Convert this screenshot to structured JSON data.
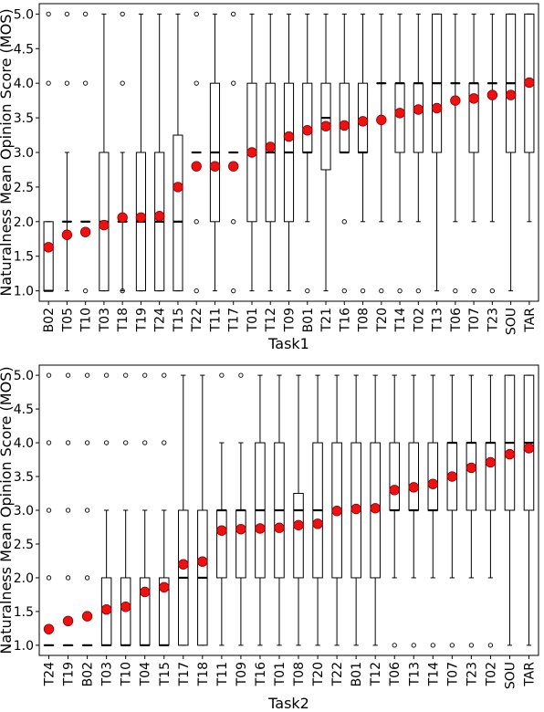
{
  "chart_data": [
    {
      "type": "box",
      "xlabel": "Task1",
      "ylabel": "Naturalness Mean Opinion Score (MOS)",
      "ylim": [
        0.85,
        5.15
      ],
      "yticks": [
        1.0,
        1.5,
        2.0,
        2.5,
        3.0,
        3.5,
        4.0,
        4.5,
        5.0
      ],
      "ytick_labels": [
        "1.0",
        "1.5",
        "2.0",
        "2.5",
        "3.0",
        "3.5",
        "4.0",
        "4.5",
        "5.0"
      ],
      "categories": [
        "B02",
        "T05",
        "T10",
        "T03",
        "T18",
        "T19",
        "T24",
        "T15",
        "T22",
        "T11",
        "T17",
        "T01",
        "T12",
        "T09",
        "B01",
        "T21",
        "T16",
        "T08",
        "T20",
        "T14",
        "T02",
        "T13",
        "T06",
        "T07",
        "T23",
        "SOU",
        "TAR"
      ],
      "boxes": [
        {
          "lw": 1,
          "q1": 1,
          "med": 1,
          "q3": 2,
          "uw": 2,
          "fliers": [
            4,
            5
          ]
        },
        {
          "lw": 1,
          "q1": 2,
          "med": 2,
          "q3": 2,
          "uw": 3,
          "fliers": [
            4,
            5
          ]
        },
        {
          "lw": 2,
          "q1": 2,
          "med": 2,
          "q3": 2,
          "uw": 2,
          "fliers": [
            1,
            4,
            5
          ]
        },
        {
          "lw": 1,
          "q1": 1,
          "med": 2,
          "q3": 3,
          "uw": 5,
          "fliers": []
        },
        {
          "lw": 1,
          "q1": 2,
          "med": 2,
          "q3": 2,
          "uw": 3,
          "fliers": [
            1,
            4,
            5
          ]
        },
        {
          "lw": 1,
          "q1": 1,
          "med": 2,
          "q3": 3,
          "uw": 5,
          "fliers": []
        },
        {
          "lw": 1,
          "q1": 1,
          "med": 2,
          "q3": 3,
          "uw": 5,
          "fliers": []
        },
        {
          "lw": 1,
          "q1": 1,
          "med": 2,
          "q3": 3.25,
          "uw": 5,
          "fliers": []
        },
        {
          "lw": 3,
          "q1": 3,
          "med": 3,
          "q3": 3,
          "uw": 3,
          "fliers": [
            1,
            2,
            4,
            5
          ]
        },
        {
          "lw": 1,
          "q1": 2,
          "med": 3,
          "q3": 4,
          "uw": 5,
          "fliers": []
        },
        {
          "lw": 3,
          "q1": 3,
          "med": 3,
          "q3": 3,
          "uw": 3,
          "fliers": [
            1,
            2,
            4,
            5
          ]
        },
        {
          "lw": 1,
          "q1": 2,
          "med": 3,
          "q3": 4,
          "uw": 5,
          "fliers": []
        },
        {
          "lw": 1,
          "q1": 2,
          "med": 3,
          "q3": 4,
          "uw": 5,
          "fliers": []
        },
        {
          "lw": 1,
          "q1": 2,
          "med": 3,
          "q3": 4,
          "uw": 5,
          "fliers": []
        },
        {
          "lw": 2,
          "q1": 3,
          "med": 3,
          "q3": 4,
          "uw": 5,
          "fliers": [
            1
          ]
        },
        {
          "lw": 1,
          "q1": 2.75,
          "med": 3.5,
          "q3": 4,
          "uw": 5,
          "fliers": []
        },
        {
          "lw": 3,
          "q1": 3,
          "med": 3,
          "q3": 4,
          "uw": 5,
          "fliers": [
            1,
            2
          ]
        },
        {
          "lw": 2,
          "q1": 3,
          "med": 3,
          "q3": 4,
          "uw": 5,
          "fliers": [
            1
          ]
        },
        {
          "lw": 2,
          "q1": 4,
          "med": 4,
          "q3": 4,
          "uw": 5,
          "fliers": [
            1
          ]
        },
        {
          "lw": 2,
          "q1": 3,
          "med": 4,
          "q3": 4,
          "uw": 5,
          "fliers": [
            1
          ]
        },
        {
          "lw": 2,
          "q1": 3,
          "med": 4,
          "q3": 4,
          "uw": 5,
          "fliers": [
            1
          ]
        },
        {
          "lw": 1,
          "q1": 3,
          "med": 4,
          "q3": 5,
          "uw": 5,
          "fliers": []
        },
        {
          "lw": 2,
          "q1": 4,
          "med": 4,
          "q3": 4,
          "uw": 5,
          "fliers": [
            1
          ]
        },
        {
          "lw": 2,
          "q1": 3,
          "med": 4,
          "q3": 4,
          "uw": 5,
          "fliers": [
            1
          ]
        },
        {
          "lw": 2,
          "q1": 4,
          "med": 4,
          "q3": 4,
          "uw": 5,
          "fliers": [
            1
          ]
        },
        {
          "lw": 1,
          "q1": 3,
          "med": 4,
          "q3": 5,
          "uw": 5,
          "fliers": []
        },
        {
          "lw": 2,
          "q1": 3,
          "med": 4,
          "q3": 5,
          "uw": 5,
          "fliers": []
        }
      ],
      "means": [
        1.63,
        1.81,
        1.85,
        1.95,
        2.06,
        2.06,
        2.08,
        2.5,
        2.8,
        2.8,
        2.8,
        3.0,
        3.08,
        3.23,
        3.32,
        3.38,
        3.39,
        3.45,
        3.47,
        3.57,
        3.62,
        3.64,
        3.75,
        3.78,
        3.83,
        3.83,
        4.01
      ]
    },
    {
      "type": "box",
      "xlabel": "Task2",
      "ylabel": "Naturalness Mean Opinion Score (MOS)",
      "ylim": [
        0.85,
        5.15
      ],
      "yticks": [
        1.0,
        1.5,
        2.0,
        2.5,
        3.0,
        3.5,
        4.0,
        4.5,
        5.0
      ],
      "ytick_labels": [
        "1.0",
        "1.5",
        "2.0",
        "2.5",
        "3.0",
        "3.5",
        "4.0",
        "4.5",
        "5.0"
      ],
      "categories": [
        "T24",
        "T19",
        "B02",
        "T03",
        "T10",
        "T04",
        "T15",
        "T17",
        "T18",
        "T11",
        "T09",
        "T16",
        "T01",
        "T08",
        "T20",
        "T22",
        "B01",
        "T12",
        "T06",
        "T13",
        "T14",
        "T07",
        "T23",
        "T02",
        "SOU",
        "TAR"
      ],
      "boxes": [
        {
          "lw": 1,
          "q1": 1,
          "med": 1,
          "q3": 1,
          "uw": 1,
          "fliers": [
            2,
            3,
            4,
            5
          ]
        },
        {
          "lw": 1,
          "q1": 1,
          "med": 1,
          "q3": 1,
          "uw": 1,
          "fliers": [
            2,
            3,
            4,
            5
          ]
        },
        {
          "lw": 1,
          "q1": 1,
          "med": 1,
          "q3": 1,
          "uw": 1,
          "fliers": [
            2,
            3,
            4,
            5
          ]
        },
        {
          "lw": 1,
          "q1": 1,
          "med": 1,
          "q3": 2,
          "uw": 3,
          "fliers": [
            4,
            5
          ]
        },
        {
          "lw": 1,
          "q1": 1,
          "med": 1,
          "q3": 2,
          "uw": 3,
          "fliers": [
            4,
            5
          ]
        },
        {
          "lw": 1,
          "q1": 1,
          "med": 1,
          "q3": 2,
          "uw": 3,
          "fliers": [
            4,
            5
          ]
        },
        {
          "lw": 1,
          "q1": 1,
          "med": 1,
          "q3": 2,
          "uw": 3,
          "fliers": [
            4,
            5
          ]
        },
        {
          "lw": 1,
          "q1": 1,
          "med": 2,
          "q3": 3,
          "uw": 5,
          "fliers": []
        },
        {
          "lw": 1,
          "q1": 1,
          "med": 2,
          "q3": 3,
          "uw": 5,
          "fliers": []
        },
        {
          "lw": 1,
          "q1": 2,
          "med": 3,
          "q3": 3,
          "uw": 4,
          "fliers": [
            5
          ]
        },
        {
          "lw": 1,
          "q1": 2,
          "med": 3,
          "q3": 3,
          "uw": 4,
          "fliers": [
            5
          ]
        },
        {
          "lw": 1,
          "q1": 2,
          "med": 3,
          "q3": 4,
          "uw": 5,
          "fliers": []
        },
        {
          "lw": 1,
          "q1": 2,
          "med": 3,
          "q3": 4,
          "uw": 5,
          "fliers": []
        },
        {
          "lw": 1,
          "q1": 2,
          "med": 3,
          "q3": 3.25,
          "uw": 5,
          "fliers": []
        },
        {
          "lw": 1,
          "q1": 2,
          "med": 3,
          "q3": 4,
          "uw": 5,
          "fliers": []
        },
        {
          "lw": 1,
          "q1": 2,
          "med": 3,
          "q3": 4,
          "uw": 5,
          "fliers": []
        },
        {
          "lw": 1,
          "q1": 2,
          "med": 3,
          "q3": 4,
          "uw": 5,
          "fliers": []
        },
        {
          "lw": 1,
          "q1": 2,
          "med": 3,
          "q3": 4,
          "uw": 5,
          "fliers": []
        },
        {
          "lw": 2,
          "q1": 3,
          "med": 3,
          "q3": 4,
          "uw": 5,
          "fliers": [
            1
          ]
        },
        {
          "lw": 2,
          "q1": 3,
          "med": 3,
          "q3": 4,
          "uw": 5,
          "fliers": [
            1
          ]
        },
        {
          "lw": 2,
          "q1": 3,
          "med": 3,
          "q3": 4,
          "uw": 5,
          "fliers": [
            1
          ]
        },
        {
          "lw": 2,
          "q1": 3,
          "med": 4,
          "q3": 4,
          "uw": 5,
          "fliers": [
            1
          ]
        },
        {
          "lw": 2,
          "q1": 3,
          "med": 4,
          "q3": 4,
          "uw": 5,
          "fliers": [
            1
          ]
        },
        {
          "lw": 2,
          "q1": 3,
          "med": 4,
          "q3": 4,
          "uw": 5,
          "fliers": [
            1
          ]
        },
        {
          "lw": 1,
          "q1": 3,
          "med": 4,
          "q3": 5,
          "uw": 5,
          "fliers": []
        },
        {
          "lw": 1,
          "q1": 3,
          "med": 4,
          "q3": 5,
          "uw": 5,
          "fliers": []
        }
      ],
      "means": [
        1.24,
        1.36,
        1.43,
        1.53,
        1.57,
        1.79,
        1.86,
        2.2,
        2.24,
        2.7,
        2.72,
        2.73,
        2.74,
        2.78,
        2.8,
        2.99,
        3.02,
        3.03,
        3.3,
        3.34,
        3.39,
        3.5,
        3.63,
        3.71,
        3.83,
        3.92
      ]
    }
  ],
  "colors": {
    "mean_marker": "#ee1111",
    "mean_marker_edge": "#880000",
    "box_line": "#000000",
    "background": "#ffffff"
  }
}
